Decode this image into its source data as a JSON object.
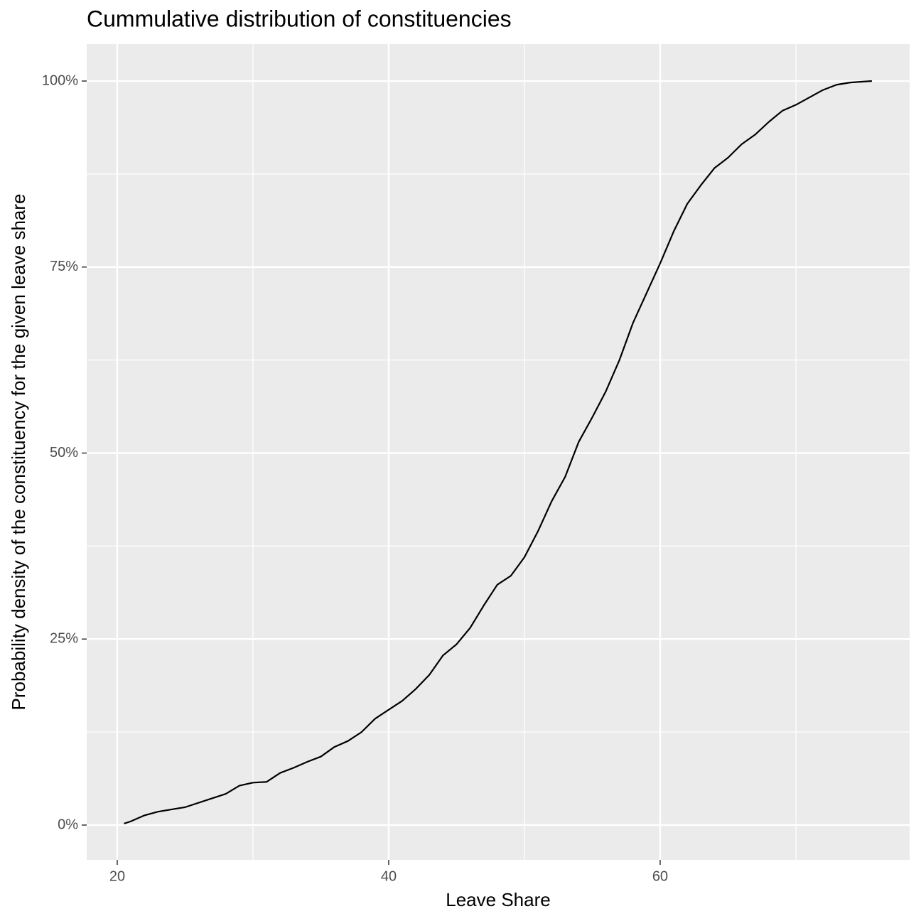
{
  "chart_data": {
    "type": "line",
    "title": "Cummulative distribution of constituencies",
    "x_label": "Leave Share",
    "y_label": "Probability density of the constituency for the given leave share",
    "xlim": [
      17.75,
      78.38
    ],
    "ylim": [
      -4.68,
      104.97
    ],
    "xticks": [
      20,
      40,
      60
    ],
    "x_minor_ticks": [
      30,
      50,
      70
    ],
    "yticks": [
      {
        "value": 0,
        "label": "0%"
      },
      {
        "value": 25,
        "label": "25%"
      },
      {
        "value": 50,
        "label": "50%"
      },
      {
        "value": 75,
        "label": "75%"
      },
      {
        "value": 100,
        "label": "100%"
      }
    ],
    "y_minor_ticks": [
      12.5,
      37.5,
      62.5,
      87.5
    ],
    "grid": true,
    "series": [
      {
        "color": "#000000",
        "x": [
          20.5,
          21,
          22,
          23,
          25,
          27,
          28,
          29,
          30,
          31,
          32,
          33,
          34,
          35,
          36,
          37,
          38,
          39,
          40,
          41,
          42,
          43,
          44,
          45,
          46,
          47,
          48,
          49,
          50,
          51,
          52,
          53,
          54,
          55,
          56,
          57,
          58,
          59,
          60,
          61,
          62,
          63,
          64,
          65,
          66,
          67,
          68,
          69,
          70,
          71,
          72,
          73,
          74,
          75.6
        ],
        "values": [
          0.2,
          0.5,
          1.3,
          1.8,
          2.4,
          3.6,
          4.2,
          5.3,
          5.7,
          5.8,
          7.0,
          7.7,
          8.5,
          9.2,
          10.5,
          11.3,
          12.5,
          14.3,
          15.5,
          16.7,
          18.3,
          20.2,
          22.8,
          24.3,
          26.5,
          29.5,
          32.3,
          33.5,
          36.0,
          39.5,
          43.5,
          46.8,
          51.5,
          54.8,
          58.3,
          62.5,
          67.5,
          71.5,
          75.5,
          79.8,
          83.5,
          86.0,
          88.3,
          89.7,
          91.5,
          92.8,
          94.5,
          96.0,
          96.8,
          97.8,
          98.8,
          99.5,
          99.8,
          100
        ]
      }
    ]
  }
}
